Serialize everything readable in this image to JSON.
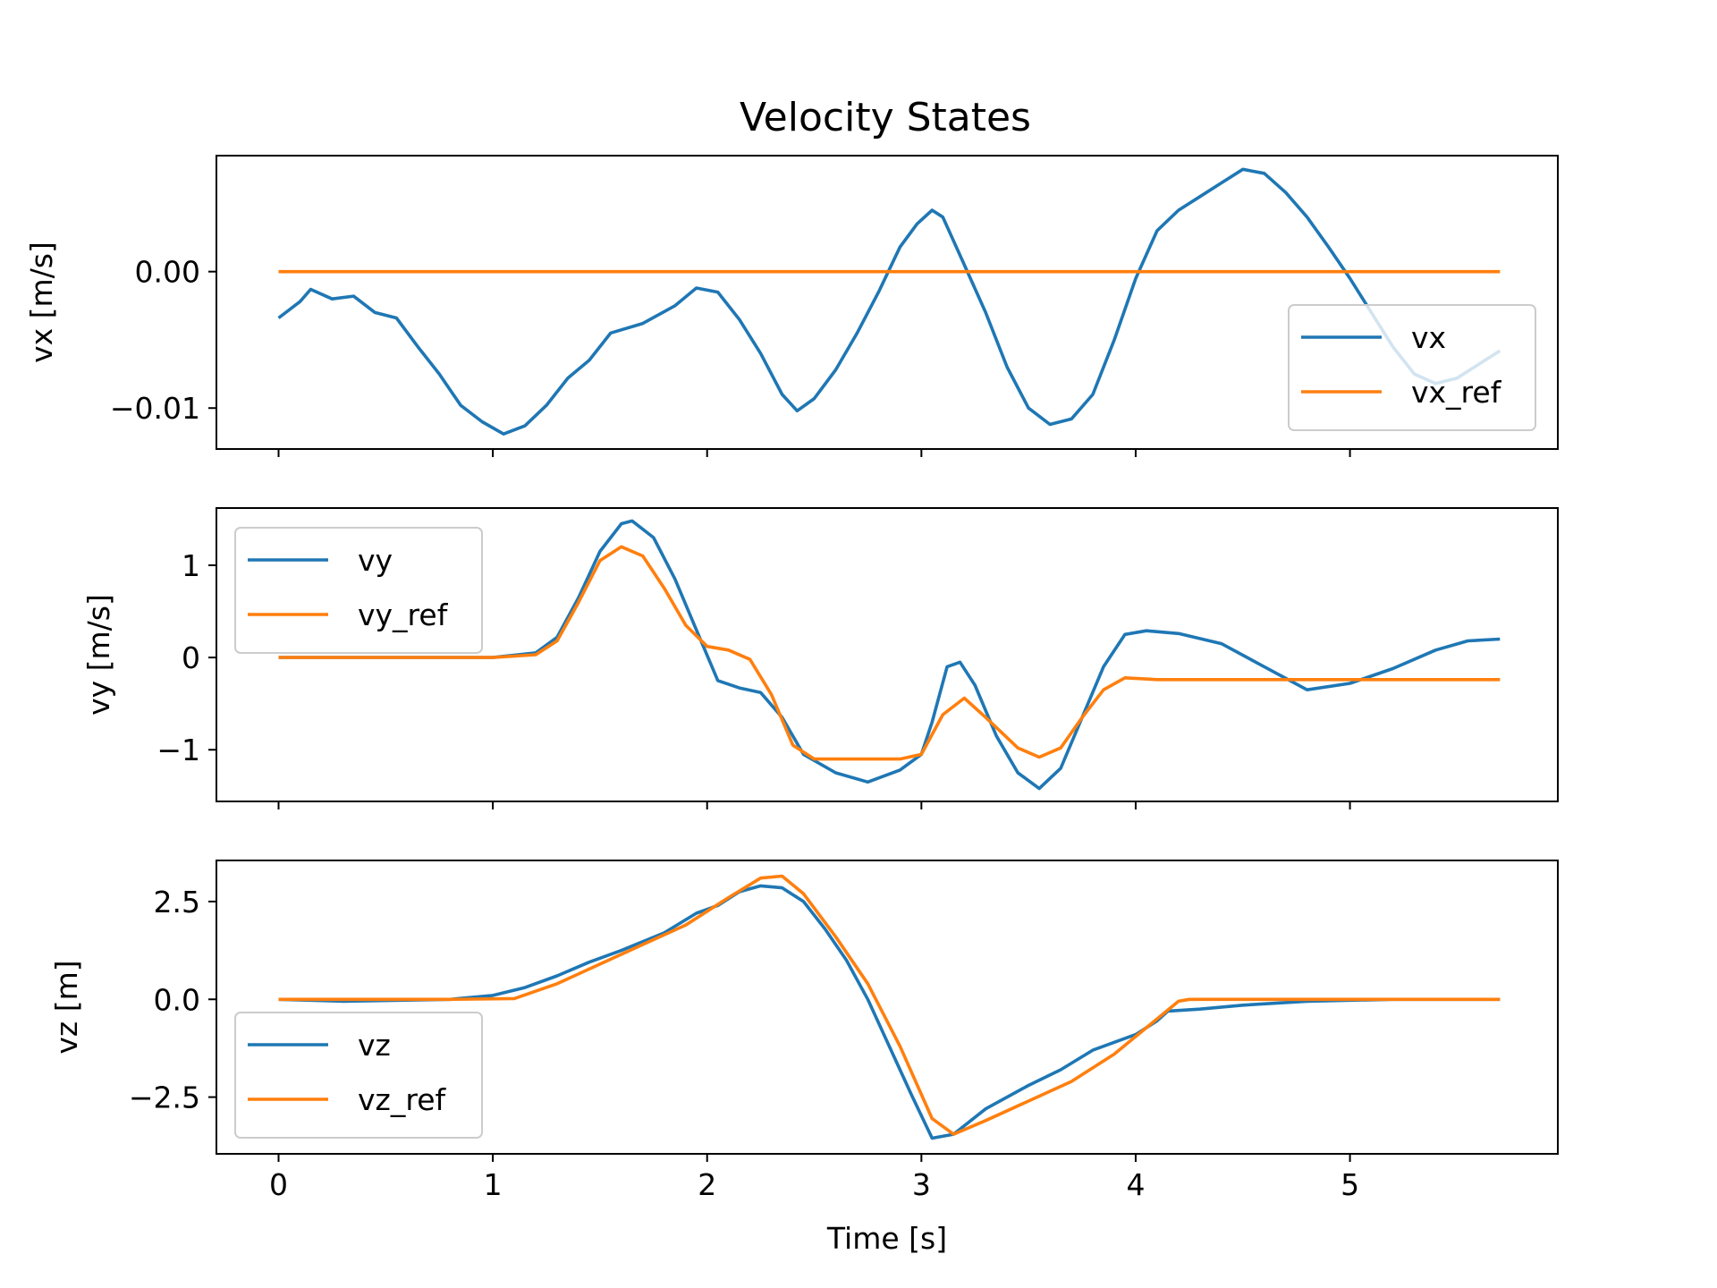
{
  "title": "Velocity States",
  "colors": {
    "actual": "#1f77b4",
    "reference": "#ff7f0e"
  },
  "chart_data": [
    {
      "type": "line",
      "ylabel": "vx [m/s]",
      "xlim": [
        -0.29,
        5.97
      ],
      "ylim": [
        -0.013,
        0.0085
      ],
      "yticks": [
        {
          "v": 0.0,
          "label": "0.00"
        },
        {
          "v": -0.01,
          "label": "−0.01"
        }
      ],
      "xticks": [
        0,
        1,
        2,
        3,
        4,
        5
      ],
      "show_xticklabels": false,
      "legend": "right",
      "series": [
        {
          "name": "vx",
          "color": "#1f77b4",
          "points": [
            [
              0.0,
              -0.0034
            ],
            [
              0.1,
              -0.0022
            ],
            [
              0.15,
              -0.0013
            ],
            [
              0.25,
              -0.002
            ],
            [
              0.35,
              -0.0018
            ],
            [
              0.45,
              -0.003
            ],
            [
              0.55,
              -0.0034
            ],
            [
              0.65,
              -0.0055
            ],
            [
              0.75,
              -0.0075
            ],
            [
              0.85,
              -0.0098
            ],
            [
              0.95,
              -0.011
            ],
            [
              1.05,
              -0.0119
            ],
            [
              1.15,
              -0.0113
            ],
            [
              1.25,
              -0.0098
            ],
            [
              1.35,
              -0.0078
            ],
            [
              1.45,
              -0.0065
            ],
            [
              1.55,
              -0.0045
            ],
            [
              1.7,
              -0.0038
            ],
            [
              1.85,
              -0.0025
            ],
            [
              1.95,
              -0.0012
            ],
            [
              2.05,
              -0.0015
            ],
            [
              2.15,
              -0.0035
            ],
            [
              2.25,
              -0.006
            ],
            [
              2.35,
              -0.009
            ],
            [
              2.42,
              -0.0102
            ],
            [
              2.5,
              -0.0093
            ],
            [
              2.6,
              -0.0072
            ],
            [
              2.7,
              -0.0045
            ],
            [
              2.8,
              -0.0015
            ],
            [
              2.9,
              0.0018
            ],
            [
              2.98,
              0.0035
            ],
            [
              3.05,
              0.0045
            ],
            [
              3.1,
              0.004
            ],
            [
              3.2,
              0.0005
            ],
            [
              3.3,
              -0.003
            ],
            [
              3.4,
              -0.007
            ],
            [
              3.5,
              -0.01
            ],
            [
              3.6,
              -0.0112
            ],
            [
              3.7,
              -0.0108
            ],
            [
              3.8,
              -0.009
            ],
            [
              3.9,
              -0.005
            ],
            [
              4.0,
              -0.0005
            ],
            [
              4.1,
              0.003
            ],
            [
              4.2,
              0.0045
            ],
            [
              4.3,
              0.0055
            ],
            [
              4.4,
              0.0065
            ],
            [
              4.5,
              0.0075
            ],
            [
              4.6,
              0.0072
            ],
            [
              4.7,
              0.0058
            ],
            [
              4.8,
              0.004
            ],
            [
              4.9,
              0.0018
            ],
            [
              5.0,
              -0.0005
            ],
            [
              5.1,
              -0.003
            ],
            [
              5.2,
              -0.0055
            ],
            [
              5.3,
              -0.0075
            ],
            [
              5.4,
              -0.0082
            ],
            [
              5.5,
              -0.0078
            ],
            [
              5.6,
              -0.0068
            ],
            [
              5.7,
              -0.0058
            ]
          ]
        },
        {
          "name": "vx_ref",
          "color": "#ff7f0e",
          "points": [
            [
              0.0,
              0.0
            ],
            [
              5.7,
              0.0
            ]
          ]
        }
      ]
    },
    {
      "type": "line",
      "ylabel": "vy [m/s]",
      "xlim": [
        -0.29,
        5.97
      ],
      "ylim": [
        -1.56,
        1.62
      ],
      "yticks": [
        {
          "v": 1,
          "label": "1"
        },
        {
          "v": 0,
          "label": "0"
        },
        {
          "v": -1,
          "label": "−1"
        }
      ],
      "xticks": [
        0,
        1,
        2,
        3,
        4,
        5
      ],
      "show_xticklabels": false,
      "legend": "upper left",
      "series": [
        {
          "name": "vy",
          "color": "#1f77b4",
          "points": [
            [
              0.0,
              0.0
            ],
            [
              1.0,
              0.0
            ],
            [
              1.2,
              0.05
            ],
            [
              1.3,
              0.22
            ],
            [
              1.4,
              0.65
            ],
            [
              1.5,
              1.15
            ],
            [
              1.6,
              1.45
            ],
            [
              1.65,
              1.48
            ],
            [
              1.75,
              1.3
            ],
            [
              1.85,
              0.85
            ],
            [
              1.95,
              0.3
            ],
            [
              2.05,
              -0.25
            ],
            [
              2.15,
              -0.33
            ],
            [
              2.25,
              -0.38
            ],
            [
              2.35,
              -0.65
            ],
            [
              2.45,
              -1.05
            ],
            [
              2.6,
              -1.25
            ],
            [
              2.75,
              -1.35
            ],
            [
              2.9,
              -1.22
            ],
            [
              3.0,
              -1.05
            ],
            [
              3.05,
              -0.7
            ],
            [
              3.12,
              -0.1
            ],
            [
              3.18,
              -0.05
            ],
            [
              3.25,
              -0.3
            ],
            [
              3.35,
              -0.85
            ],
            [
              3.45,
              -1.25
            ],
            [
              3.55,
              -1.42
            ],
            [
              3.65,
              -1.2
            ],
            [
              3.75,
              -0.65
            ],
            [
              3.85,
              -0.1
            ],
            [
              3.95,
              0.25
            ],
            [
              4.05,
              0.29
            ],
            [
              4.2,
              0.26
            ],
            [
              4.4,
              0.15
            ],
            [
              4.6,
              -0.1
            ],
            [
              4.8,
              -0.35
            ],
            [
              5.0,
              -0.28
            ],
            [
              5.2,
              -0.12
            ],
            [
              5.4,
              0.08
            ],
            [
              5.55,
              0.18
            ],
            [
              5.7,
              0.2
            ]
          ]
        },
        {
          "name": "vy_ref",
          "color": "#ff7f0e",
          "points": [
            [
              0.0,
              0.0
            ],
            [
              1.0,
              0.0
            ],
            [
              1.2,
              0.03
            ],
            [
              1.3,
              0.18
            ],
            [
              1.4,
              0.6
            ],
            [
              1.5,
              1.05
            ],
            [
              1.6,
              1.2
            ],
            [
              1.7,
              1.1
            ],
            [
              1.8,
              0.75
            ],
            [
              1.9,
              0.35
            ],
            [
              2.0,
              0.12
            ],
            [
              2.1,
              0.08
            ],
            [
              2.2,
              -0.02
            ],
            [
              2.3,
              -0.4
            ],
            [
              2.4,
              -0.95
            ],
            [
              2.5,
              -1.1
            ],
            [
              2.7,
              -1.1
            ],
            [
              2.9,
              -1.1
            ],
            [
              3.0,
              -1.05
            ],
            [
              3.1,
              -0.62
            ],
            [
              3.2,
              -0.44
            ],
            [
              3.3,
              -0.65
            ],
            [
              3.45,
              -0.98
            ],
            [
              3.55,
              -1.08
            ],
            [
              3.65,
              -0.98
            ],
            [
              3.75,
              -0.65
            ],
            [
              3.85,
              -0.35
            ],
            [
              3.95,
              -0.22
            ],
            [
              4.1,
              -0.24
            ],
            [
              4.5,
              -0.24
            ],
            [
              5.0,
              -0.24
            ],
            [
              5.7,
              -0.24
            ]
          ]
        }
      ]
    },
    {
      "type": "line",
      "ylabel": "vz [m]",
      "xlabel": "Time [s]",
      "xlim": [
        -0.29,
        5.97
      ],
      "ylim": [
        -3.95,
        3.55
      ],
      "yticks": [
        {
          "v": 2.5,
          "label": "2.5"
        },
        {
          "v": 0.0,
          "label": "0.0"
        },
        {
          "v": -2.5,
          "label": "−2.5"
        }
      ],
      "xticks": [
        0,
        1,
        2,
        3,
        4,
        5
      ],
      "show_xticklabels": true,
      "legend": "lower left",
      "series": [
        {
          "name": "vz",
          "color": "#1f77b4",
          "points": [
            [
              0.0,
              0.0
            ],
            [
              0.3,
              -0.05
            ],
            [
              0.8,
              0.0
            ],
            [
              1.0,
              0.1
            ],
            [
              1.15,
              0.3
            ],
            [
              1.3,
              0.6
            ],
            [
              1.45,
              0.95
            ],
            [
              1.6,
              1.25
            ],
            [
              1.8,
              1.7
            ],
            [
              1.95,
              2.2
            ],
            [
              2.05,
              2.4
            ],
            [
              2.15,
              2.75
            ],
            [
              2.25,
              2.9
            ],
            [
              2.35,
              2.85
            ],
            [
              2.45,
              2.5
            ],
            [
              2.55,
              1.8
            ],
            [
              2.65,
              1.0
            ],
            [
              2.75,
              0.0
            ],
            [
              2.85,
              -1.2
            ],
            [
              2.95,
              -2.4
            ],
            [
              3.05,
              -3.55
            ],
            [
              3.15,
              -3.45
            ],
            [
              3.3,
              -2.8
            ],
            [
              3.5,
              -2.2
            ],
            [
              3.65,
              -1.8
            ],
            [
              3.8,
              -1.3
            ],
            [
              4.0,
              -0.9
            ],
            [
              4.1,
              -0.55
            ],
            [
              4.15,
              -0.3
            ],
            [
              4.3,
              -0.25
            ],
            [
              4.5,
              -0.15
            ],
            [
              4.8,
              -0.05
            ],
            [
              5.2,
              0.0
            ],
            [
              5.7,
              0.0
            ]
          ]
        },
        {
          "name": "vz_ref",
          "color": "#ff7f0e",
          "points": [
            [
              0.0,
              0.0
            ],
            [
              0.8,
              0.0
            ],
            [
              1.1,
              0.02
            ],
            [
              1.3,
              0.4
            ],
            [
              1.5,
              0.9
            ],
            [
              1.7,
              1.4
            ],
            [
              1.9,
              1.9
            ],
            [
              2.1,
              2.6
            ],
            [
              2.25,
              3.1
            ],
            [
              2.35,
              3.15
            ],
            [
              2.45,
              2.7
            ],
            [
              2.6,
              1.6
            ],
            [
              2.75,
              0.4
            ],
            [
              2.9,
              -1.2
            ],
            [
              3.05,
              -3.05
            ],
            [
              3.15,
              -3.45
            ],
            [
              3.3,
              -3.1
            ],
            [
              3.5,
              -2.6
            ],
            [
              3.7,
              -2.1
            ],
            [
              3.9,
              -1.4
            ],
            [
              4.1,
              -0.5
            ],
            [
              4.2,
              -0.05
            ],
            [
              4.25,
              0.0
            ],
            [
              5.7,
              0.0
            ]
          ]
        }
      ]
    }
  ]
}
